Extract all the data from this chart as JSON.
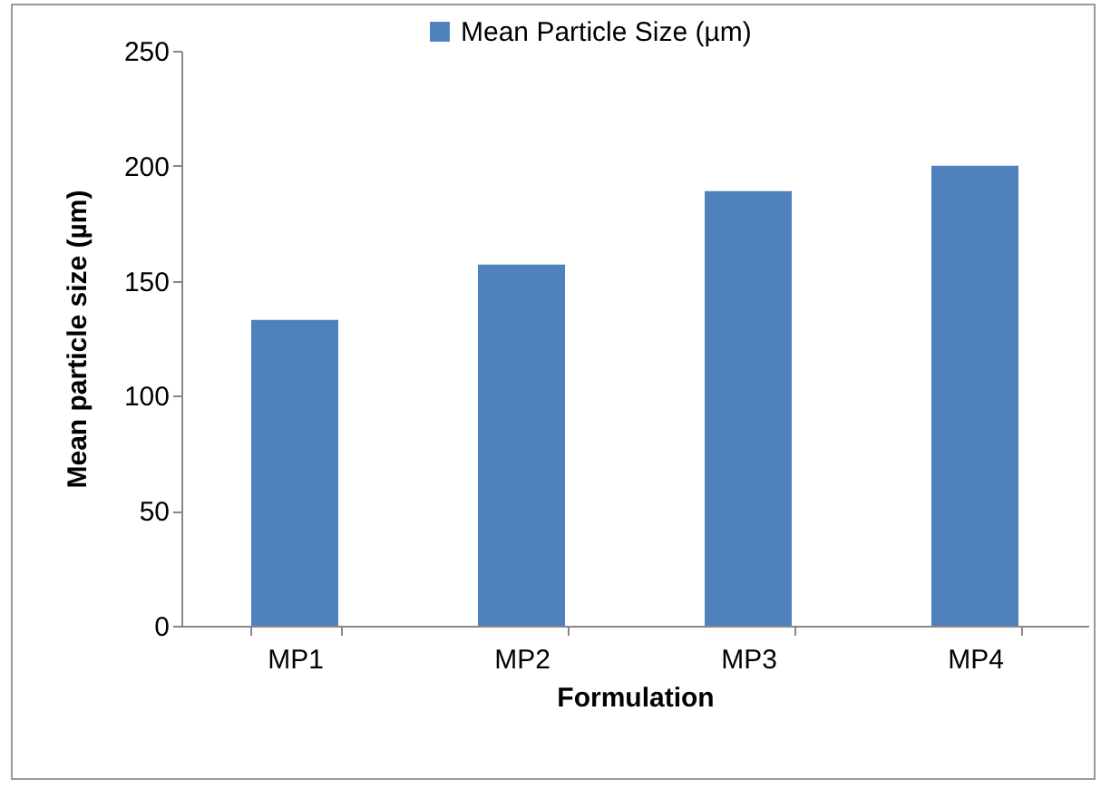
{
  "chart_data": {
    "type": "bar",
    "xlabel": "Formulation",
    "ylabel": "Mean particle size (µm)",
    "categories": [
      "MP1",
      "MP2",
      "MP3",
      "MP4"
    ],
    "series": [
      {
        "name": "Mean Particle Size (µm)",
        "color": "#4f81bd",
        "values": [
          133,
          157,
          189,
          200
        ]
      }
    ],
    "ylim": [
      0,
      250
    ],
    "yticks": [
      0,
      50,
      100,
      150,
      200,
      250
    ],
    "grid": false,
    "legend": "top"
  }
}
